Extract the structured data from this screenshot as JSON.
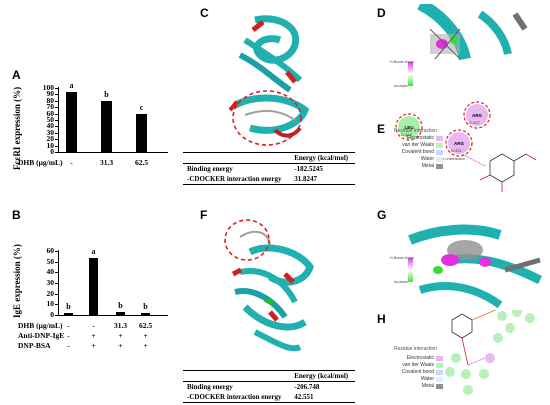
{
  "panels": {
    "A": "A",
    "B": "B",
    "C": "C",
    "D": "D",
    "E": "E",
    "F": "F",
    "G": "G",
    "H": "H"
  },
  "chart_data": [
    {
      "type": "bar",
      "panel": "A",
      "ylabel": "FcεRI expression (%)",
      "ylim": [
        0,
        100
      ],
      "yticks": [
        "0",
        "10",
        "20",
        "30",
        "40",
        "50",
        "60",
        "70",
        "80",
        "90",
        "100"
      ],
      "row_label": "DHB (μg/mL)",
      "categories": [
        "-",
        "31.3",
        "62.5"
      ],
      "values": [
        93,
        79,
        59
      ],
      "letters": [
        "a",
        "b",
        "c"
      ]
    },
    {
      "type": "bar",
      "panel": "B",
      "ylabel": "IgE expression (%)",
      "ylim": [
        0,
        60
      ],
      "yticks": [
        "0",
        "10",
        "20",
        "30",
        "40",
        "50",
        "60"
      ],
      "rows": [
        {
          "label": "DHB (μg/mL)",
          "values": [
            "-",
            "-",
            "31.3",
            "62.5"
          ]
        },
        {
          "label": "Anti-DNP-IgE",
          "values": [
            "-",
            "+",
            "+",
            "+"
          ]
        },
        {
          "label": "DNP-BSA",
          "values": [
            "-",
            "+",
            "+",
            "+"
          ]
        }
      ],
      "values": [
        2,
        53,
        2.5,
        2
      ],
      "letters": [
        "b",
        "a",
        "b",
        "b"
      ]
    }
  ],
  "table_c": {
    "header": "Energy (kcal/mol)",
    "rows": [
      {
        "name": "Binding energy",
        "value": "-182.5245"
      },
      {
        "name": "-CDOCKER interaction energy",
        "value": "31.8247"
      }
    ]
  },
  "table_f": {
    "header": "Energy (kcal/mol)",
    "rows": [
      {
        "name": "Binding energy",
        "value": "-206.748"
      },
      {
        "name": "-CDOCKER interaction energy",
        "value": "42.551"
      }
    ]
  },
  "panel_e": {
    "legend_title": "Residue Interaction",
    "legend": [
      "Electrostatic",
      "van der Waals",
      "Covalent bond",
      "Water",
      "Metal"
    ],
    "legend_colors": [
      "#e8b8f0",
      "#b8f0b8",
      "#c8d8ff",
      "#d8f0ff",
      "#909090"
    ],
    "residues": [
      {
        "name": "LEU",
        "num": "D:429",
        "color": "#a8f0a8"
      },
      {
        "name": "ARG",
        "num": "D:427",
        "color": "#e8b8f0"
      },
      {
        "name": "ARG",
        "num": "D:431",
        "color": "#e8b8f0"
      }
    ],
    "note": "Ion interaction"
  },
  "panel_h": {
    "legend_title": "Residue Interaction",
    "legend": [
      "Electrostatic",
      "van der Waals",
      "Covalent bond",
      "Water",
      "Metal"
    ],
    "legend_colors": [
      "#e8b8f0",
      "#b8f0b8",
      "#c8d8ff",
      "#d8f0ff",
      "#909090"
    ]
  },
  "colorbar": {
    "top": "H-Bonds Donor",
    "bottom": "Acceptor"
  }
}
